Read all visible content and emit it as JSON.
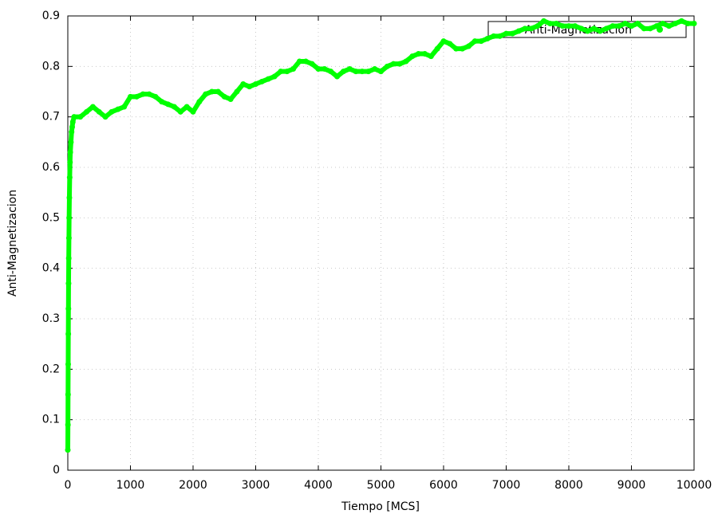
{
  "chart_data": {
    "type": "scatter",
    "xlabel": "Tiempo [MCS]",
    "ylabel": "Anti-Magnetizacion",
    "xlim": [
      0,
      10000
    ],
    "ylim": [
      0,
      0.9
    ],
    "xticks": [
      0,
      1000,
      2000,
      3000,
      4000,
      5000,
      6000,
      7000,
      8000,
      9000,
      10000
    ],
    "yticks": [
      0,
      0.1,
      0.2,
      0.3,
      0.4,
      0.5,
      0.6,
      0.7,
      0.8,
      0.9
    ],
    "grid": true,
    "legend": "top-right",
    "series": [
      {
        "name": "Anti-Magnetizacion",
        "color": "#00ff00",
        "x": [
          0,
          2,
          4,
          6,
          8,
          10,
          12,
          15,
          18,
          21,
          25,
          30,
          35,
          40,
          50,
          60,
          70,
          80,
          100,
          200,
          300,
          400,
          500,
          600,
          700,
          800,
          900,
          1000,
          1100,
          1200,
          1300,
          1400,
          1500,
          1600,
          1700,
          1800,
          1900,
          2000,
          2100,
          2200,
          2300,
          2400,
          2500,
          2600,
          2700,
          2800,
          2900,
          3000,
          3100,
          3200,
          3300,
          3400,
          3500,
          3600,
          3700,
          3800,
          3900,
          4000,
          4100,
          4200,
          4300,
          4400,
          4500,
          4600,
          4700,
          4800,
          4900,
          5000,
          5100,
          5200,
          5300,
          5400,
          5500,
          5600,
          5700,
          5800,
          5900,
          6000,
          6100,
          6200,
          6300,
          6400,
          6500,
          6600,
          6700,
          6800,
          6900,
          7000,
          7100,
          7200,
          7300,
          7400,
          7500,
          7600,
          7700,
          7800,
          7900,
          8000,
          8100,
          8200,
          8300,
          8400,
          8500,
          8600,
          8700,
          8800,
          8900,
          9000,
          9100,
          9200,
          9300,
          9400,
          9500,
          9600,
          9700,
          9800,
          9900,
          10000
        ],
        "values": [
          0.04,
          0.09,
          0.15,
          0.21,
          0.27,
          0.32,
          0.37,
          0.42,
          0.46,
          0.5,
          0.54,
          0.58,
          0.61,
          0.63,
          0.65,
          0.67,
          0.68,
          0.69,
          0.7,
          0.7,
          0.71,
          0.72,
          0.71,
          0.7,
          0.71,
          0.715,
          0.72,
          0.74,
          0.74,
          0.745,
          0.745,
          0.74,
          0.73,
          0.725,
          0.72,
          0.71,
          0.72,
          0.71,
          0.73,
          0.745,
          0.75,
          0.75,
          0.74,
          0.735,
          0.75,
          0.765,
          0.76,
          0.765,
          0.77,
          0.775,
          0.78,
          0.79,
          0.79,
          0.795,
          0.81,
          0.81,
          0.805,
          0.795,
          0.795,
          0.79,
          0.78,
          0.79,
          0.795,
          0.79,
          0.79,
          0.79,
          0.795,
          0.79,
          0.8,
          0.805,
          0.805,
          0.81,
          0.82,
          0.825,
          0.825,
          0.82,
          0.835,
          0.85,
          0.845,
          0.835,
          0.835,
          0.84,
          0.85,
          0.85,
          0.855,
          0.86,
          0.86,
          0.865,
          0.865,
          0.87,
          0.875,
          0.875,
          0.88,
          0.89,
          0.885,
          0.885,
          0.88,
          0.88,
          0.88,
          0.875,
          0.87,
          0.875,
          0.87,
          0.875,
          0.88,
          0.88,
          0.885,
          0.88,
          0.885,
          0.875,
          0.875,
          0.88,
          0.885,
          0.88,
          0.885,
          0.89,
          0.885,
          0.885
        ]
      }
    ]
  }
}
